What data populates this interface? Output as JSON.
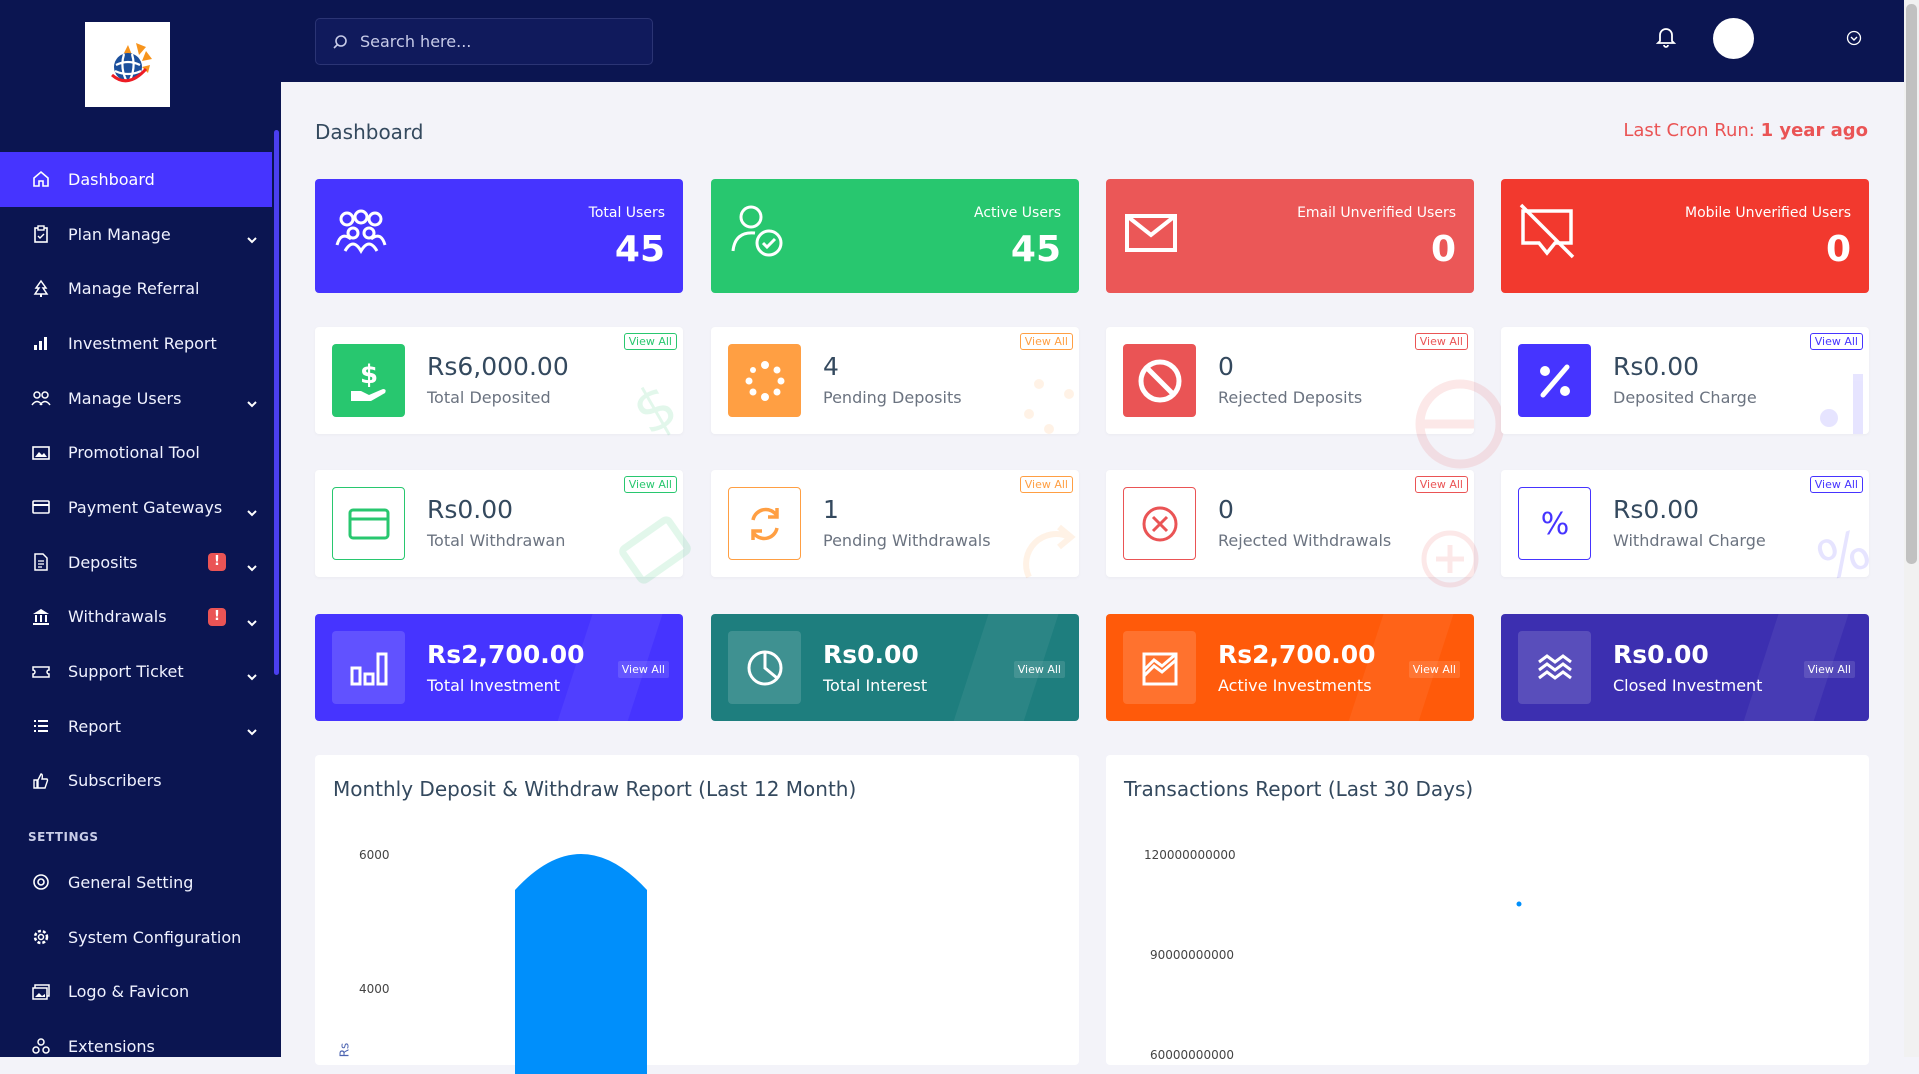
{
  "sidebar": {
    "items": [
      {
        "label": "Dashboard",
        "icon": "home-icon"
      },
      {
        "label": "Plan Manage",
        "icon": "clipboard-icon"
      },
      {
        "label": "Manage Referral",
        "icon": "tree-icon"
      },
      {
        "label": "Investment Report",
        "icon": "bar-chart-icon"
      },
      {
        "label": "Manage Users",
        "icon": "users-icon"
      },
      {
        "label": "Promotional Tool",
        "icon": "image-icon"
      },
      {
        "label": "Payment Gateways",
        "icon": "credit-card-icon"
      },
      {
        "label": "Deposits",
        "icon": "file-invoice-icon",
        "badge": "!"
      },
      {
        "label": "Withdrawals",
        "icon": "bank-icon",
        "badge": "!"
      },
      {
        "label": "Support Ticket",
        "icon": "ticket-icon"
      },
      {
        "label": "Report",
        "icon": "list-icon"
      },
      {
        "label": "Subscribers",
        "icon": "thumbs-up-icon"
      }
    ],
    "settings_title": "SETTINGS",
    "settings": [
      {
        "label": "General Setting",
        "icon": "life-ring-icon"
      },
      {
        "label": "System Configuration",
        "icon": "cog-icon"
      },
      {
        "label": "Logo & Favicon",
        "icon": "images-icon"
      },
      {
        "label": "Extensions",
        "icon": "puzzle-icon"
      }
    ]
  },
  "topbar": {
    "search_placeholder": "Search here..."
  },
  "page": {
    "title": "Dashboard",
    "cron_label": "Last Cron Run:",
    "cron_value": "1 year ago"
  },
  "stats_top": [
    {
      "label": "Total Users",
      "value": "45",
      "color": "#4634ff"
    },
    {
      "label": "Active Users",
      "value": "45",
      "color": "#28c76f"
    },
    {
      "label": "Email Unverified Users",
      "value": "0",
      "color": "#eb5757"
    },
    {
      "label": "Mobile Unverified Users",
      "value": "0",
      "color": "#f2392e"
    }
  ],
  "deposits": [
    {
      "value": "Rs6,000.00",
      "label": "Total Deposited",
      "view": "View All",
      "color": "#28c76f"
    },
    {
      "value": "4",
      "label": "Pending Deposits",
      "view": "View All",
      "color": "#ff9f43"
    },
    {
      "value": "0",
      "label": "Rejected Deposits",
      "view": "View All",
      "color": "#ea5455"
    },
    {
      "value": "Rs0.00",
      "label": "Deposited Charge",
      "view": "View All",
      "color": "#4634ff"
    }
  ],
  "withdrawals": [
    {
      "value": "Rs0.00",
      "label": "Total Withdrawan",
      "view": "View All",
      "color": "#28c76f"
    },
    {
      "value": "1",
      "label": "Pending Withdrawals",
      "view": "View All",
      "color": "#ff9f43"
    },
    {
      "value": "0",
      "label": "Rejected Withdrawals",
      "view": "View All",
      "color": "#ea5455"
    },
    {
      "value": "Rs0.00",
      "label": "Withdrawal Charge",
      "view": "View All",
      "color": "#4634ff"
    }
  ],
  "investments": [
    {
      "value": "Rs2,700.00",
      "label": "Total Investment",
      "view": "View All",
      "color": "#4634ff"
    },
    {
      "value": "Rs0.00",
      "label": "Total Interest",
      "view": "View All",
      "color": "#1e7e7e"
    },
    {
      "value": "Rs2,700.00",
      "label": "Active Investments",
      "view": "View All",
      "color": "#ff5a0a"
    },
    {
      "value": "Rs0.00",
      "label": "Closed Investment",
      "view": "View All",
      "color": "#3c2fb0"
    }
  ],
  "charts": {
    "monthly_title": "Monthly Deposit & Withdraw Report (Last 12 Month)",
    "transactions_title": "Transactions Report (Last 30 Days)"
  },
  "chart_data": [
    {
      "type": "bar",
      "title": "Monthly Deposit & Withdraw Report (Last 12 Month)",
      "ylabel": "Rs",
      "yticks": [
        "6000",
        "4000"
      ],
      "values": [
        6000
      ]
    },
    {
      "type": "scatter",
      "title": "Transactions Report (Last 30 Days)",
      "yticks": [
        "120000000000",
        "90000000000",
        "60000000000"
      ],
      "points": [
        {
          "y": 105000000000
        }
      ]
    }
  ]
}
